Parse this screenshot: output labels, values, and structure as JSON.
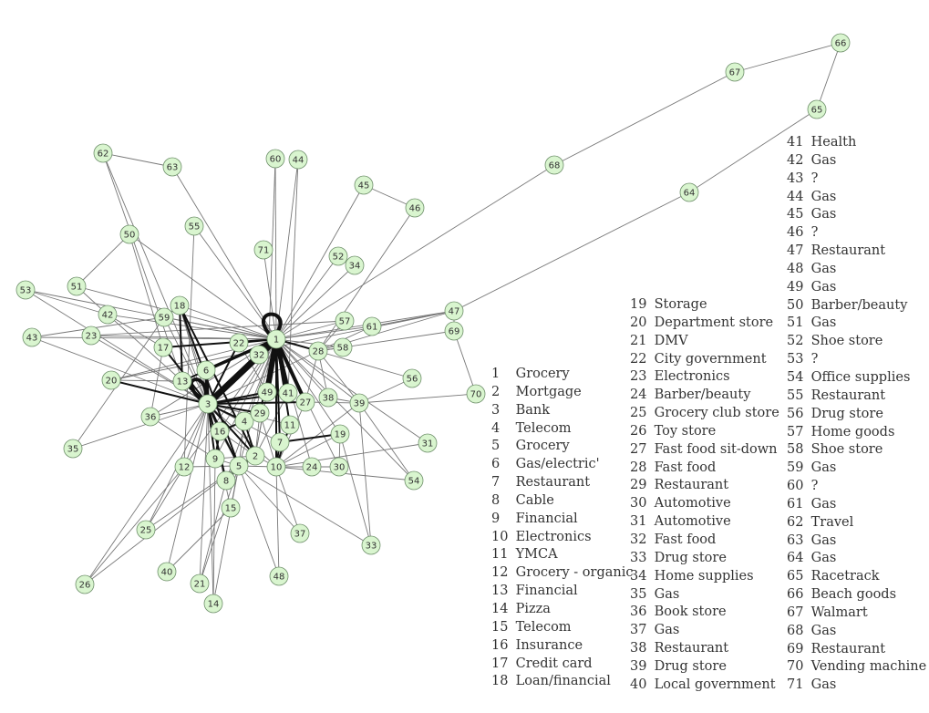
{
  "graph": {
    "node_fill": "#d9f5cf",
    "node_stroke": "#6e8f6a",
    "edge_color": "#777777",
    "strong_edge_color": "#111111",
    "nodes": [
      {
        "id": "1",
        "label": "1"
      },
      {
        "id": "2",
        "label": "2"
      },
      {
        "id": "3",
        "label": "3"
      },
      {
        "id": "4",
        "label": "4"
      },
      {
        "id": "5",
        "label": "5"
      },
      {
        "id": "6",
        "label": "6"
      },
      {
        "id": "7",
        "label": "7"
      },
      {
        "id": "8",
        "label": "8"
      },
      {
        "id": "9",
        "label": "9"
      },
      {
        "id": "10",
        "label": "10"
      },
      {
        "id": "11",
        "label": "11"
      },
      {
        "id": "12",
        "label": "12"
      },
      {
        "id": "13",
        "label": "13"
      },
      {
        "id": "14",
        "label": "14"
      },
      {
        "id": "15",
        "label": "15"
      },
      {
        "id": "16",
        "label": "16"
      },
      {
        "id": "17",
        "label": "17"
      },
      {
        "id": "18",
        "label": "18"
      },
      {
        "id": "19",
        "label": "19"
      },
      {
        "id": "20",
        "label": "20"
      },
      {
        "id": "21",
        "label": "21"
      },
      {
        "id": "22",
        "label": "22"
      },
      {
        "id": "23",
        "label": "23"
      },
      {
        "id": "24",
        "label": "24"
      },
      {
        "id": "25",
        "label": "25"
      },
      {
        "id": "26",
        "label": "26"
      },
      {
        "id": "27",
        "label": "27"
      },
      {
        "id": "28",
        "label": "28"
      },
      {
        "id": "29",
        "label": "29"
      },
      {
        "id": "30",
        "label": "30"
      },
      {
        "id": "31",
        "label": "31"
      },
      {
        "id": "32",
        "label": "32"
      },
      {
        "id": "33",
        "label": "33"
      },
      {
        "id": "34",
        "label": "34"
      },
      {
        "id": "35",
        "label": "35"
      },
      {
        "id": "36",
        "label": "36"
      },
      {
        "id": "37",
        "label": "37"
      },
      {
        "id": "38",
        "label": "38"
      },
      {
        "id": "39",
        "label": "39"
      },
      {
        "id": "40",
        "label": "40"
      },
      {
        "id": "41",
        "label": "41"
      },
      {
        "id": "42",
        "label": "42"
      },
      {
        "id": "43",
        "label": "43"
      },
      {
        "id": "44",
        "label": "44"
      },
      {
        "id": "45",
        "label": "45"
      },
      {
        "id": "46",
        "label": "46"
      },
      {
        "id": "47",
        "label": "47"
      },
      {
        "id": "48",
        "label": "48"
      },
      {
        "id": "49",
        "label": "49"
      },
      {
        "id": "50",
        "label": "50"
      },
      {
        "id": "51",
        "label": "51"
      },
      {
        "id": "52",
        "label": "52"
      },
      {
        "id": "53",
        "label": "53"
      },
      {
        "id": "54",
        "label": "54"
      },
      {
        "id": "55",
        "label": "55"
      },
      {
        "id": "56",
        "label": "56"
      },
      {
        "id": "57",
        "label": "57"
      },
      {
        "id": "58",
        "label": "58"
      },
      {
        "id": "59",
        "label": "59"
      },
      {
        "id": "60",
        "label": "60"
      },
      {
        "id": "61",
        "label": "61"
      },
      {
        "id": "62",
        "label": "62"
      },
      {
        "id": "63",
        "label": "63"
      },
      {
        "id": "64",
        "label": "64"
      },
      {
        "id": "65",
        "label": "65"
      },
      {
        "id": "66",
        "label": "66"
      },
      {
        "id": "67",
        "label": "67"
      },
      {
        "id": "68",
        "label": "68"
      },
      {
        "id": "69",
        "label": "69"
      },
      {
        "id": "70",
        "label": "70"
      },
      {
        "id": "71",
        "label": "71"
      }
    ],
    "edges": [
      [
        "1",
        "60"
      ],
      [
        "1",
        "44"
      ],
      [
        "1",
        "71"
      ],
      [
        "1",
        "45"
      ],
      [
        "1",
        "52"
      ],
      [
        "1",
        "34"
      ],
      [
        "1",
        "57"
      ],
      [
        "1",
        "61"
      ],
      [
        "1",
        "47"
      ],
      [
        "1",
        "28"
      ],
      [
        "1",
        "58"
      ],
      [
        "1",
        "56"
      ],
      [
        "1",
        "39"
      ],
      [
        "1",
        "38"
      ],
      [
        "1",
        "27"
      ],
      [
        "1",
        "41"
      ],
      [
        "1",
        "49"
      ],
      [
        "1",
        "32"
      ],
      [
        "1",
        "22"
      ],
      [
        "1",
        "18"
      ],
      [
        "1",
        "59"
      ],
      [
        "1",
        "17"
      ],
      [
        "1",
        "13"
      ],
      [
        "1",
        "6"
      ],
      [
        "1",
        "3"
      ],
      [
        "1",
        "55"
      ],
      [
        "1",
        "63"
      ],
      [
        "1",
        "50"
      ],
      [
        "1",
        "42"
      ],
      [
        "1",
        "51"
      ],
      [
        "1",
        "53"
      ],
      [
        "1",
        "43"
      ],
      [
        "1",
        "23"
      ],
      [
        "1",
        "20"
      ],
      [
        "1",
        "36"
      ],
      [
        "1",
        "16"
      ],
      [
        "1",
        "4"
      ],
      [
        "1",
        "29"
      ],
      [
        "1",
        "11"
      ],
      [
        "1",
        "7"
      ],
      [
        "1",
        "10"
      ],
      [
        "1",
        "19"
      ],
      [
        "1",
        "24"
      ],
      [
        "1",
        "30"
      ],
      [
        "1",
        "31"
      ],
      [
        "1",
        "54"
      ],
      [
        "1",
        "2"
      ],
      [
        "1",
        "5"
      ],
      [
        "1",
        "9"
      ],
      [
        "1",
        "8"
      ],
      [
        "1",
        "12"
      ],
      [
        "3",
        "18"
      ],
      [
        "3",
        "59"
      ],
      [
        "3",
        "17"
      ],
      [
        "3",
        "13"
      ],
      [
        "3",
        "6"
      ],
      [
        "3",
        "20"
      ],
      [
        "3",
        "36"
      ],
      [
        "3",
        "16"
      ],
      [
        "3",
        "4"
      ],
      [
        "3",
        "29"
      ],
      [
        "3",
        "2"
      ],
      [
        "3",
        "5"
      ],
      [
        "3",
        "9"
      ],
      [
        "3",
        "8"
      ],
      [
        "3",
        "12"
      ],
      [
        "3",
        "22"
      ],
      [
        "3",
        "32"
      ],
      [
        "3",
        "42"
      ],
      [
        "3",
        "23"
      ],
      [
        "3",
        "43"
      ],
      [
        "3",
        "53"
      ],
      [
        "3",
        "35"
      ],
      [
        "3",
        "62"
      ],
      [
        "3",
        "27"
      ],
      [
        "3",
        "28"
      ],
      [
        "3",
        "41"
      ],
      [
        "3",
        "49"
      ],
      [
        "3",
        "10"
      ],
      [
        "3",
        "7"
      ],
      [
        "3",
        "11"
      ],
      [
        "3",
        "15"
      ],
      [
        "3",
        "25"
      ],
      [
        "3",
        "26"
      ],
      [
        "3",
        "40"
      ],
      [
        "3",
        "21"
      ],
      [
        "3",
        "14"
      ],
      [
        "2",
        "5"
      ],
      [
        "2",
        "4"
      ],
      [
        "2",
        "16"
      ],
      [
        "2",
        "29"
      ],
      [
        "2",
        "10"
      ],
      [
        "2",
        "8"
      ],
      [
        "2",
        "9"
      ],
      [
        "2",
        "49"
      ],
      [
        "2",
        "41"
      ],
      [
        "5",
        "8"
      ],
      [
        "5",
        "9"
      ],
      [
        "5",
        "16"
      ],
      [
        "5",
        "15"
      ],
      [
        "5",
        "14"
      ],
      [
        "5",
        "21"
      ],
      [
        "5",
        "25"
      ],
      [
        "5",
        "26"
      ],
      [
        "5",
        "48"
      ],
      [
        "5",
        "37"
      ],
      [
        "5",
        "33"
      ],
      [
        "5",
        "12"
      ],
      [
        "5",
        "4"
      ],
      [
        "5",
        "10"
      ],
      [
        "10",
        "24"
      ],
      [
        "10",
        "30"
      ],
      [
        "10",
        "31"
      ],
      [
        "10",
        "27"
      ],
      [
        "10",
        "7"
      ],
      [
        "10",
        "11"
      ],
      [
        "10",
        "29"
      ],
      [
        "10",
        "48"
      ],
      [
        "10",
        "37"
      ],
      [
        "10",
        "39"
      ],
      [
        "10",
        "54"
      ],
      [
        "10",
        "19"
      ],
      [
        "28",
        "57"
      ],
      [
        "28",
        "61"
      ],
      [
        "28",
        "47"
      ],
      [
        "28",
        "69"
      ],
      [
        "28",
        "39"
      ],
      [
        "28",
        "38"
      ],
      [
        "28",
        "58"
      ],
      [
        "28",
        "27"
      ],
      [
        "39",
        "70"
      ],
      [
        "39",
        "56"
      ],
      [
        "39",
        "54"
      ],
      [
        "39",
        "33"
      ],
      [
        "39",
        "38"
      ],
      [
        "39",
        "27"
      ],
      [
        "47",
        "64"
      ],
      [
        "64",
        "65"
      ],
      [
        "65",
        "66"
      ],
      [
        "66",
        "67"
      ],
      [
        "67",
        "68"
      ],
      [
        "68",
        "1"
      ],
      [
        "47",
        "61"
      ],
      [
        "47",
        "69"
      ],
      [
        "69",
        "70"
      ],
      [
        "62",
        "63"
      ],
      [
        "62",
        "13"
      ],
      [
        "50",
        "51"
      ],
      [
        "50",
        "17"
      ],
      [
        "51",
        "42"
      ],
      [
        "53",
        "42"
      ],
      [
        "42",
        "17"
      ],
      [
        "43",
        "59"
      ],
      [
        "45",
        "46"
      ],
      [
        "46",
        "28"
      ],
      [
        "52",
        "34"
      ],
      [
        "60",
        "49"
      ],
      [
        "44",
        "41"
      ],
      [
        "55",
        "12"
      ],
      [
        "59",
        "35"
      ],
      [
        "18",
        "16"
      ],
      [
        "17",
        "36"
      ],
      [
        "20",
        "13"
      ],
      [
        "36",
        "9"
      ],
      [
        "12",
        "25"
      ],
      [
        "12",
        "26"
      ],
      [
        "15",
        "40"
      ],
      [
        "8",
        "21"
      ],
      [
        "9",
        "14"
      ],
      [
        "19",
        "7"
      ],
      [
        "19",
        "33"
      ],
      [
        "19",
        "30"
      ],
      [
        "24",
        "30"
      ],
      [
        "29",
        "16"
      ],
      [
        "22",
        "49"
      ],
      [
        "23",
        "57"
      ],
      [
        "20",
        "47"
      ]
    ],
    "strong_edges": [
      [
        "1",
        "3"
      ],
      [
        "1",
        "32"
      ],
      [
        "1",
        "49"
      ],
      [
        "1",
        "41"
      ],
      [
        "1",
        "27"
      ],
      [
        "1",
        "6"
      ],
      [
        "1",
        "13"
      ],
      [
        "1",
        "29"
      ],
      [
        "1",
        "22"
      ],
      [
        "1",
        "10"
      ],
      [
        "1",
        "7"
      ],
      [
        "1",
        "28"
      ],
      [
        "1",
        "11"
      ],
      [
        "3",
        "6"
      ],
      [
        "3",
        "32"
      ],
      [
        "3",
        "49"
      ],
      [
        "3",
        "13"
      ],
      [
        "3",
        "16"
      ],
      [
        "3",
        "4"
      ],
      [
        "3",
        "2"
      ],
      [
        "3",
        "5"
      ],
      [
        "3",
        "9"
      ],
      [
        "3",
        "29"
      ],
      [
        "3",
        "8"
      ],
      [
        "3",
        "20"
      ],
      [
        "3",
        "27"
      ],
      [
        "3",
        "41"
      ],
      [
        "2",
        "4"
      ],
      [
        "2",
        "5"
      ],
      [
        "5",
        "8"
      ],
      [
        "9",
        "16"
      ],
      [
        "7",
        "10"
      ],
      [
        "7",
        "19"
      ],
      [
        "10",
        "11"
      ],
      [
        "4",
        "16"
      ],
      [
        "18",
        "2"
      ],
      [
        "18",
        "5"
      ],
      [
        "18",
        "13"
      ],
      [
        "22",
        "3"
      ],
      [
        "17",
        "1"
      ],
      [
        "17",
        "3"
      ]
    ],
    "self_loops": [
      "1",
      "3"
    ]
  },
  "legend_col1": [
    {
      "num": "1",
      "name": "Grocery"
    },
    {
      "num": "2",
      "name": "Mortgage"
    },
    {
      "num": "3",
      "name": "Bank"
    },
    {
      "num": "4",
      "name": "Telecom"
    },
    {
      "num": "5",
      "name": "Grocery"
    },
    {
      "num": "6",
      "name": "Gas/electric'"
    },
    {
      "num": "7",
      "name": "Restaurant"
    },
    {
      "num": "8",
      "name": "Cable"
    },
    {
      "num": "9",
      "name": "Financial"
    },
    {
      "num": "10",
      "name": "Electronics"
    },
    {
      "num": "11",
      "name": "YMCA"
    },
    {
      "num": "12",
      "name": "Grocery - organic"
    },
    {
      "num": "13",
      "name": "Financial"
    },
    {
      "num": "14",
      "name": "Pizza"
    },
    {
      "num": "15",
      "name": "Telecom"
    },
    {
      "num": "16",
      "name": "Insurance"
    },
    {
      "num": "17",
      "name": "Credit card"
    },
    {
      "num": "18",
      "name": "Loan/financial"
    }
  ],
  "legend_col2": [
    {
      "num": "19",
      "name": "Storage"
    },
    {
      "num": "20",
      "name": "Department store"
    },
    {
      "num": "21",
      "name": "DMV"
    },
    {
      "num": "22",
      "name": "City government"
    },
    {
      "num": "23",
      "name": "Electronics"
    },
    {
      "num": "24",
      "name": "Barber/beauty"
    },
    {
      "num": "25",
      "name": "Grocery club store"
    },
    {
      "num": "26",
      "name": "Toy store"
    },
    {
      "num": "27",
      "name": "Fast food sit-down"
    },
    {
      "num": "28",
      "name": "Fast food"
    },
    {
      "num": "29",
      "name": "Restaurant"
    },
    {
      "num": "30",
      "name": "Automotive"
    },
    {
      "num": "31",
      "name": "Automotive"
    },
    {
      "num": "32",
      "name": "Fast food"
    },
    {
      "num": "33",
      "name": "Drug store"
    },
    {
      "num": "34",
      "name": "Home supplies"
    },
    {
      "num": "35",
      "name": "Gas"
    },
    {
      "num": "36",
      "name": "Book store"
    },
    {
      "num": "37",
      "name": "Gas"
    },
    {
      "num": "38",
      "name": "Restaurant"
    },
    {
      "num": "39",
      "name": "Drug store"
    },
    {
      "num": "40",
      "name": "Local government"
    }
  ],
  "legend_col3": [
    {
      "num": "41",
      "name": "Health"
    },
    {
      "num": "42",
      "name": "Gas"
    },
    {
      "num": "43",
      "name": "?"
    },
    {
      "num": "44",
      "name": "Gas"
    },
    {
      "num": "45",
      "name": "Gas"
    },
    {
      "num": "46",
      "name": "?"
    },
    {
      "num": "47",
      "name": "Restaurant"
    },
    {
      "num": "48",
      "name": "Gas"
    },
    {
      "num": "49",
      "name": "Gas"
    },
    {
      "num": "50",
      "name": "Barber/beauty"
    },
    {
      "num": "51",
      "name": "Gas"
    },
    {
      "num": "52",
      "name": "Shoe store"
    },
    {
      "num": "53",
      "name": "?"
    },
    {
      "num": "54",
      "name": "Office supplies"
    },
    {
      "num": "55",
      "name": "Restaurant"
    },
    {
      "num": "56",
      "name": "Drug store"
    },
    {
      "num": "57",
      "name": "Home goods"
    },
    {
      "num": "58",
      "name": "Shoe store"
    },
    {
      "num": "59",
      "name": "Gas"
    },
    {
      "num": "60",
      "name": "?"
    },
    {
      "num": "61",
      "name": "Gas"
    },
    {
      "num": "62",
      "name": "Travel"
    },
    {
      "num": "63",
      "name": "Gas"
    },
    {
      "num": "64",
      "name": "Gas"
    },
    {
      "num": "65",
      "name": "Racetrack"
    },
    {
      "num": "66",
      "name": "Beach goods"
    },
    {
      "num": "67",
      "name": "Walmart"
    },
    {
      "num": "68",
      "name": "Gas"
    },
    {
      "num": "69",
      "name": "Restaurant"
    },
    {
      "num": "70",
      "name": "Vending machine"
    },
    {
      "num": "71",
      "name": "Gas"
    }
  ]
}
